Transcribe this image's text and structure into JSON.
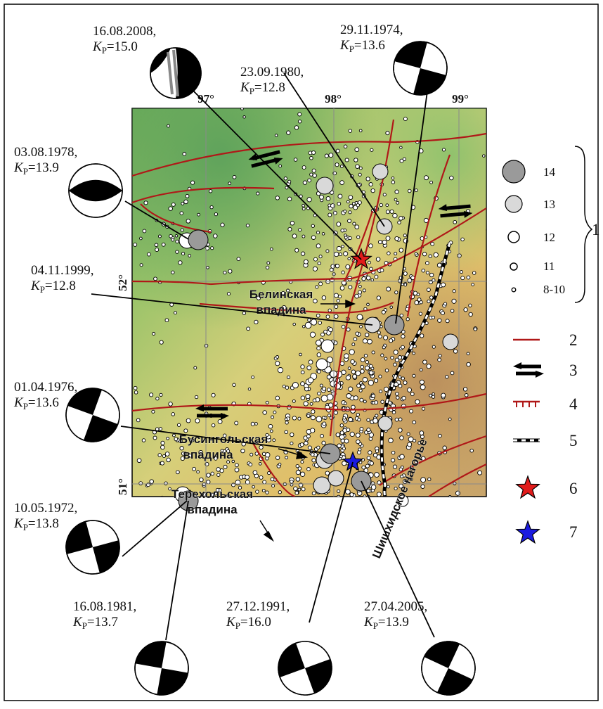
{
  "degrees": {
    "lon_97": "97°",
    "lon_98": "98°",
    "lon_99": "99°",
    "lat_52": "52°",
    "lat_51": "51°"
  },
  "basins": {
    "belinskaya_1": "Белинская",
    "belinskaya_2": "впадина",
    "busingolskaya_1": "Бусингольская",
    "busingolskaya_2": "впадина",
    "terekholskaya_1": "Терехольская",
    "terekholskaya_2": "впадина"
  },
  "plateau_label": "Шишхидское нагорье",
  "events": [
    {
      "key": "e2008",
      "date": "16.08.2008,",
      "kp": "=15.0"
    },
    {
      "key": "e1980",
      "date": "23.09.1980,",
      "kp": "=12.8"
    },
    {
      "key": "e1974",
      "date": "29.11.1974,",
      "kp": "=13.6"
    },
    {
      "key": "e1978",
      "date": "03.08.1978,",
      "kp": "=13.9"
    },
    {
      "key": "e1999",
      "date": "04.11.1999,",
      "kp": "=12.8"
    },
    {
      "key": "e1976",
      "date": "01.04.1976,",
      "kp": "=13.6"
    },
    {
      "key": "e1972",
      "date": "10.05.1972,",
      "kp": "=13.8"
    },
    {
      "key": "e1981",
      "date": "16.08.1981,",
      "kp": "=13.7"
    },
    {
      "key": "e1991",
      "date": "27.12.1991,",
      "kp": "=16.0"
    },
    {
      "key": "e2005",
      "date": "27.04.2005,",
      "kp": "=13.9"
    }
  ],
  "kp_symbol": "K",
  "kp_subscript": "P",
  "legend": {
    "classes": [
      {
        "label": "14",
        "fill": "#9a9a9a"
      },
      {
        "label": "13",
        "fill": "#d9d9d9"
      },
      {
        "label": "12",
        "fill": "#ffffff"
      },
      {
        "label": "11",
        "fill": "#ffffff"
      },
      {
        "label": "8-10",
        "fill": "#ffffff"
      }
    ],
    "group_number": "1",
    "items": [
      "2",
      "3",
      "4",
      "5",
      "6",
      "7"
    ]
  },
  "colors": {
    "fault": "#b01818",
    "star_main": "#e11b1b",
    "star_blue": "#1a1ae0",
    "eq_14": "#9a9a9a",
    "eq_13": "#d9d9d9"
  }
}
